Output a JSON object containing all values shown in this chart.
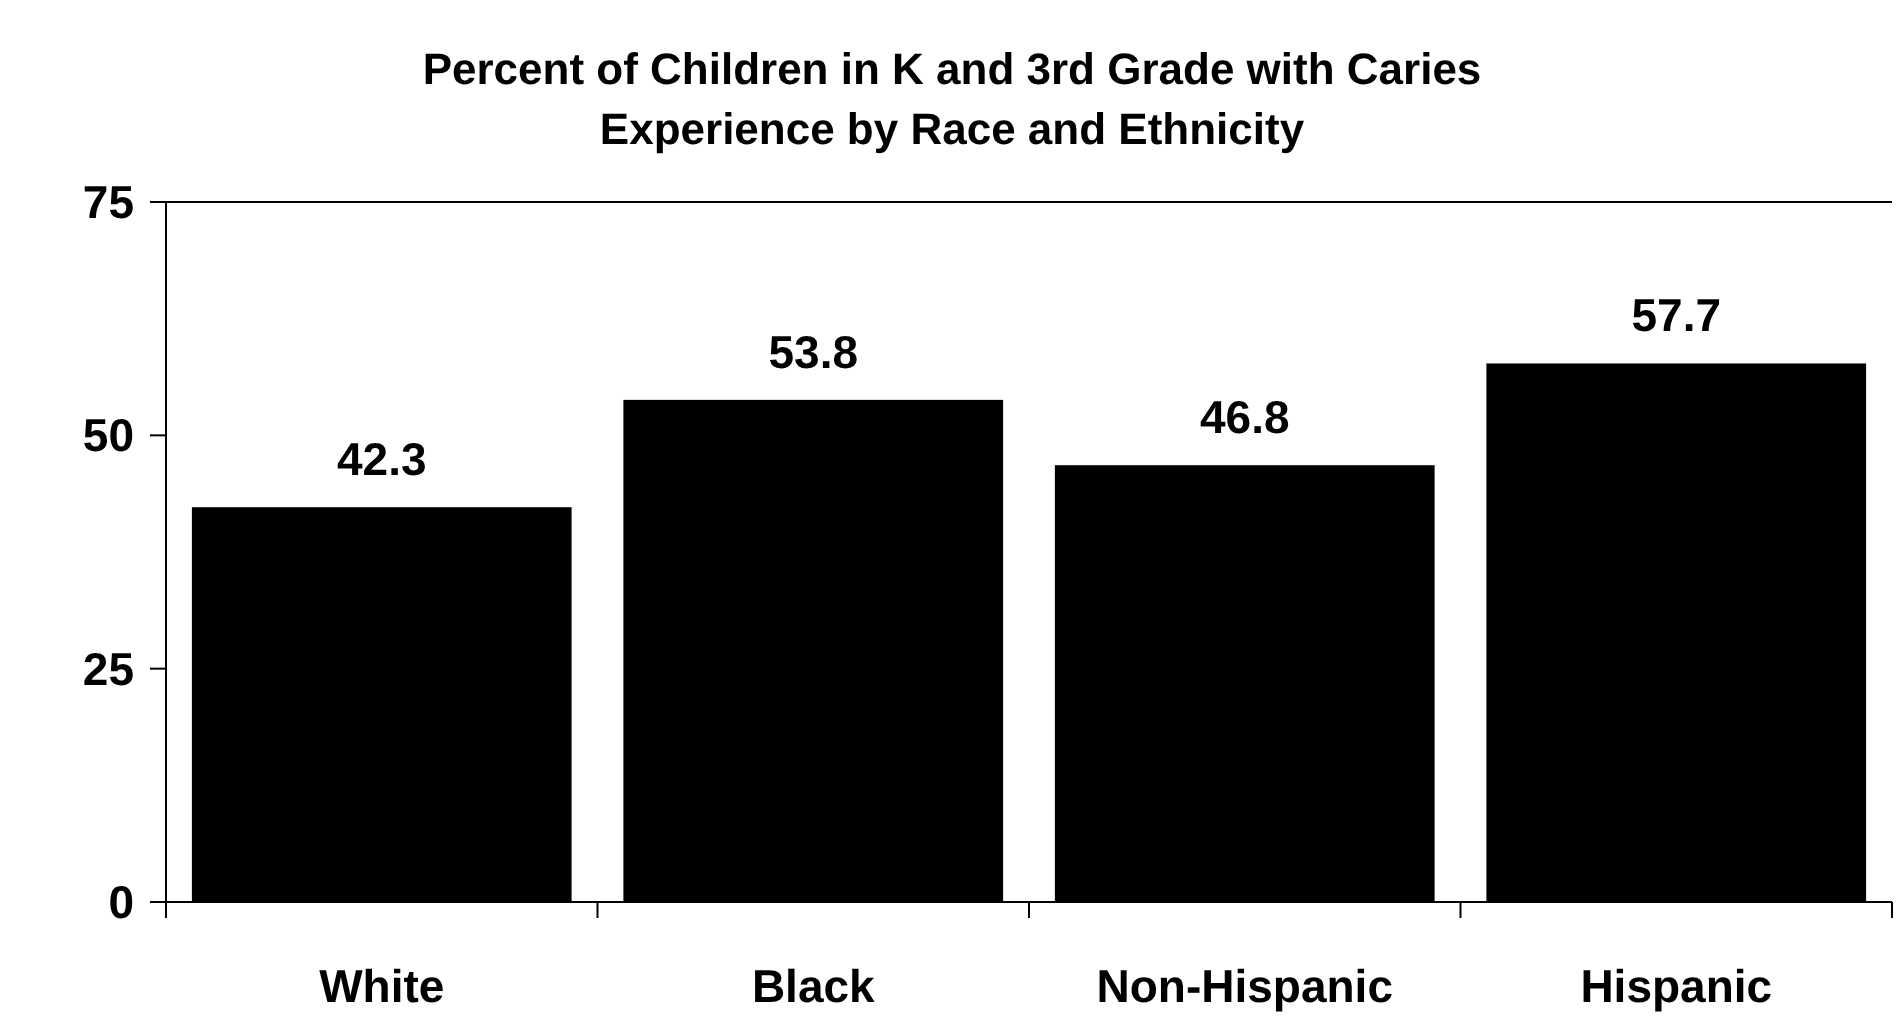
{
  "chart_data": {
    "type": "bar",
    "title": "Percent of Children in K and 3rd Grade with Caries Experience by Race and Ethnicity",
    "categories": [
      "White",
      "Black",
      "Non-Hispanic",
      "Hispanic"
    ],
    "values": [
      42.3,
      53.8,
      46.8,
      57.7
    ],
    "color": "#000000",
    "ylim": [
      0,
      75
    ],
    "yticks": [
      0,
      25,
      50,
      75
    ],
    "grid": false,
    "data_labels": true
  }
}
